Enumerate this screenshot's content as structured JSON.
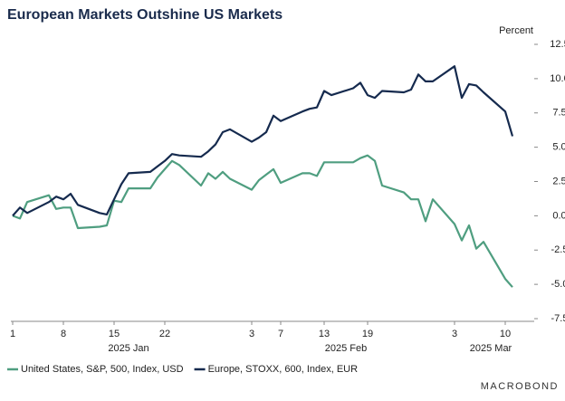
{
  "chart_data": {
    "type": "line",
    "title": "European Markets Outshine US Markets",
    "y_axis_label": "Percent",
    "x": [
      "2025-01-01",
      "2025-01-02",
      "2025-01-03",
      "2025-01-06",
      "2025-01-07",
      "2025-01-08",
      "2025-01-09",
      "2025-01-10",
      "2025-01-13",
      "2025-01-14",
      "2025-01-15",
      "2025-01-16",
      "2025-01-17",
      "2025-01-20",
      "2025-01-21",
      "2025-01-22",
      "2025-01-23",
      "2025-01-24",
      "2025-01-27",
      "2025-01-28",
      "2025-01-29",
      "2025-01-30",
      "2025-01-31",
      "2025-02-03",
      "2025-02-04",
      "2025-02-05",
      "2025-02-06",
      "2025-02-07",
      "2025-02-10",
      "2025-02-11",
      "2025-02-12",
      "2025-02-13",
      "2025-02-14",
      "2025-02-17",
      "2025-02-18",
      "2025-02-19",
      "2025-02-20",
      "2025-02-21",
      "2025-02-24",
      "2025-02-25",
      "2025-02-26",
      "2025-02-27",
      "2025-02-28",
      "2025-03-03",
      "2025-03-04",
      "2025-03-05",
      "2025-03-06",
      "2025-03-07",
      "2025-03-10",
      "2025-03-11"
    ],
    "series": [
      {
        "name": "United States, S&P, 500, Index, USD",
        "color": "#4f9e80",
        "values": [
          0,
          -0.2,
          1.0,
          1.5,
          0.5,
          0.6,
          0.6,
          -0.9,
          -0.8,
          -0.7,
          1.1,
          1.0,
          2.0,
          2.0,
          2.8,
          3.4,
          4.0,
          3.7,
          2.2,
          3.1,
          2.7,
          3.2,
          2.7,
          1.9,
          2.6,
          3.0,
          3.4,
          2.4,
          3.1,
          3.1,
          2.9,
          3.9,
          3.9,
          3.9,
          4.2,
          4.4,
          4.0,
          2.2,
          1.7,
          1.2,
          1.2,
          -0.4,
          1.2,
          -0.6,
          -1.8,
          -0.7,
          -2.4,
          -1.9,
          -4.6,
          -5.2
        ]
      },
      {
        "name": "Europe, STOXX, 600, Index, EUR",
        "color": "#152a4e",
        "values": [
          0,
          0.6,
          0.2,
          1.0,
          1.4,
          1.2,
          1.6,
          0.8,
          0.2,
          0.1,
          1.2,
          2.3,
          3.1,
          3.2,
          3.6,
          4.0,
          4.5,
          4.4,
          4.3,
          4.7,
          5.2,
          6.1,
          6.3,
          5.4,
          5.7,
          6.1,
          7.3,
          6.9,
          7.6,
          7.8,
          7.9,
          9.1,
          8.8,
          9.3,
          9.7,
          8.8,
          8.6,
          9.1,
          9.0,
          9.2,
          10.3,
          9.8,
          9.8,
          10.9,
          8.6,
          9.6,
          9.5,
          9.0,
          7.6,
          5.8
        ]
      }
    ],
    "xlim": [
      "2025-01-01",
      "2025-03-14"
    ],
    "xticks": [
      {
        "value": "2025-01-01",
        "label": "1"
      },
      {
        "value": "2025-01-08",
        "label": "8"
      },
      {
        "value": "2025-01-15",
        "label": "15"
      },
      {
        "value": "2025-01-22",
        "label": "22"
      },
      {
        "value": "2025-02-03",
        "label": "3"
      },
      {
        "value": "2025-02-07",
        "label": "7"
      },
      {
        "value": "2025-02-13",
        "label": "13"
      },
      {
        "value": "2025-02-19",
        "label": "19"
      },
      {
        "value": "2025-03-03",
        "label": "3"
      },
      {
        "value": "2025-03-10",
        "label": "10"
      }
    ],
    "xgroups": [
      {
        "value": "2025-01-17",
        "label": "2025 Jan"
      },
      {
        "value": "2025-02-16",
        "label": "2025 Feb"
      },
      {
        "value": "2025-03-08",
        "label": "2025 Mar"
      }
    ],
    "ylim": [
      -7.5,
      12.5
    ],
    "yticks": [
      12.5,
      {
        "value": 10,
        "label": "10.0"
      },
      7.5,
      {
        "value": 5,
        "label": "5.0"
      },
      2.5,
      {
        "value": 0,
        "label": "0.0"
      },
      -2.5,
      {
        "value": -5,
        "label": "-5.0"
      },
      -7.5
    ],
    "legend": "bottom",
    "source": "MACROBOND"
  }
}
